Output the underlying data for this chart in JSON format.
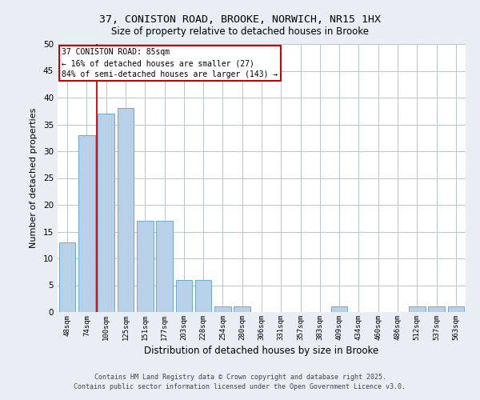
{
  "title_line1": "37, CONISTON ROAD, BROOKE, NORWICH, NR15 1HX",
  "title_line2": "Size of property relative to detached houses in Brooke",
  "xlabel": "Distribution of detached houses by size in Brooke",
  "ylabel": "Number of detached properties",
  "categories": [
    "48sqm",
    "74sqm",
    "100sqm",
    "125sqm",
    "151sqm",
    "177sqm",
    "203sqm",
    "228sqm",
    "254sqm",
    "280sqm",
    "306sqm",
    "331sqm",
    "357sqm",
    "383sqm",
    "409sqm",
    "434sqm",
    "460sqm",
    "486sqm",
    "512sqm",
    "537sqm",
    "563sqm"
  ],
  "values": [
    13,
    33,
    37,
    38,
    17,
    17,
    6,
    6,
    1,
    1,
    0,
    0,
    0,
    0,
    1,
    0,
    0,
    0,
    1,
    1,
    1
  ],
  "bar_color": "#b8d0e8",
  "bar_edge_color": "#6aaad4",
  "ylim": [
    0,
    50
  ],
  "yticks": [
    0,
    5,
    10,
    15,
    20,
    25,
    30,
    35,
    40,
    45,
    50
  ],
  "property_line_index": 1.5,
  "annotation_title": "37 CONISTON ROAD: 85sqm",
  "annotation_line1": "← 16% of detached houses are smaller (27)",
  "annotation_line2": "84% of semi-detached houses are larger (143) →",
  "annotation_box_color": "#ffffff",
  "annotation_box_edge_color": "#cc0000",
  "property_line_color": "#cc0000",
  "footer_line1": "Contains HM Land Registry data © Crown copyright and database right 2025.",
  "footer_line2": "Contains public sector information licensed under the Open Government Licence v3.0.",
  "bg_color": "#e8eef4",
  "plot_bg_color": "#ffffff",
  "grid_color": "#b0bcc8"
}
